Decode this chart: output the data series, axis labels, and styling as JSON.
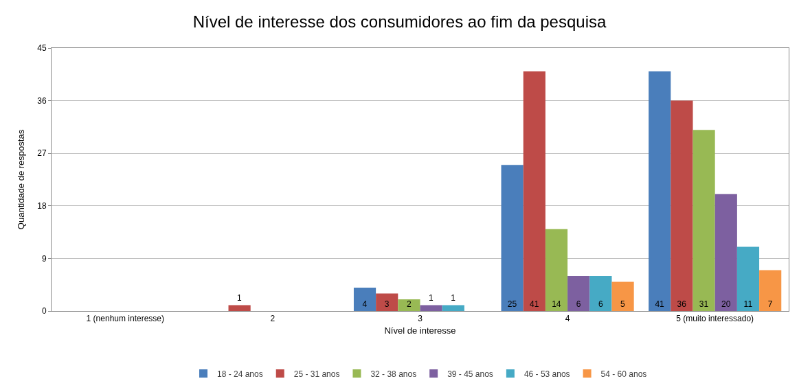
{
  "chart_data": {
    "type": "bar",
    "title": "Nível de interesse dos consumidores ao fim da pesquisa",
    "xlabel": "Nível de interesse",
    "ylabel": "Quantidade de respostas",
    "categories": [
      "1 (nenhum interesse)",
      "2",
      "3",
      "4",
      "5 (muito interessado)"
    ],
    "series": [
      {
        "name": "18 - 24 anos",
        "color": "#4a7ebb",
        "values": [
          0,
          0,
          4,
          25,
          41
        ],
        "value_labels": [
          null,
          null,
          "4",
          "25",
          "41"
        ]
      },
      {
        "name": "25 - 31 anos",
        "color": "#be4b48",
        "values": [
          0,
          1,
          3,
          41,
          36
        ],
        "value_labels": [
          null,
          "1",
          "3",
          "41",
          "36"
        ]
      },
      {
        "name": "32 - 38 anos",
        "color": "#98b954",
        "values": [
          0,
          0,
          2,
          14,
          31
        ],
        "value_labels": [
          null,
          null,
          "2",
          "14",
          "31"
        ]
      },
      {
        "name": "39 - 45 anos",
        "color": "#7d60a0",
        "values": [
          0,
          0,
          1,
          6,
          20
        ],
        "value_labels": [
          null,
          null,
          "1",
          "6",
          "20"
        ]
      },
      {
        "name": "46 - 53 anos",
        "color": "#46aac5",
        "values": [
          0,
          0,
          1,
          6,
          11
        ],
        "value_labels": [
          null,
          null,
          "1",
          "6",
          "11"
        ]
      },
      {
        "name": "54 - 60 anos",
        "color": "#f79646",
        "values": [
          0,
          0,
          0,
          5,
          7
        ],
        "value_labels": [
          null,
          null,
          null,
          "5",
          "7"
        ]
      }
    ],
    "ylim": [
      0,
      45
    ],
    "yticks": [
      0,
      9,
      18,
      27,
      36,
      45
    ],
    "grid": "y",
    "legend": "bottom"
  }
}
